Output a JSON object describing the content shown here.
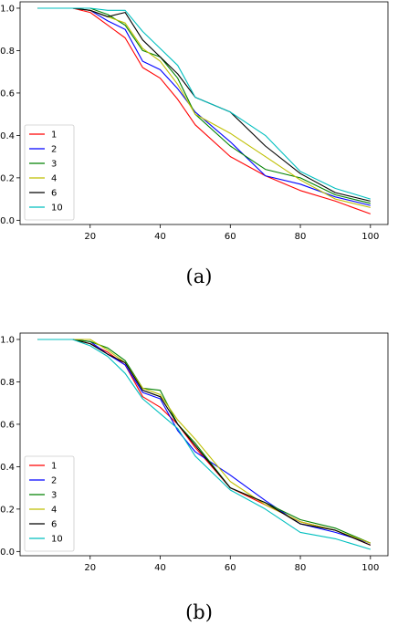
{
  "figure": {
    "captions": [
      "(a)",
      "(b)"
    ]
  },
  "chart_data": [
    {
      "type": "line",
      "x": [
        5,
        10,
        15,
        20,
        25,
        30,
        35,
        40,
        45,
        50,
        60,
        70,
        80,
        90,
        100
      ],
      "xticks": [
        20,
        40,
        60,
        80,
        100
      ],
      "yticks": [
        0.0,
        0.2,
        0.4,
        0.6,
        0.8,
        1.0
      ],
      "xlim": [
        0,
        105
      ],
      "ylim": [
        -0.02,
        1.03
      ],
      "grid": false,
      "legend_position": "lower-left",
      "series": [
        {
          "name": "1",
          "color": "#ff0000",
          "values": [
            1.0,
            1.0,
            1.0,
            0.98,
            0.92,
            0.86,
            0.72,
            0.67,
            0.57,
            0.45,
            0.3,
            0.21,
            0.14,
            0.09,
            0.03
          ]
        },
        {
          "name": "2",
          "color": "#0000ff",
          "values": [
            1.0,
            1.0,
            1.0,
            0.99,
            0.94,
            0.9,
            0.75,
            0.71,
            0.62,
            0.51,
            0.37,
            0.21,
            0.17,
            0.11,
            0.07
          ]
        },
        {
          "name": "3",
          "color": "#008000",
          "values": [
            1.0,
            1.0,
            1.0,
            1.0,
            0.97,
            0.92,
            0.8,
            0.77,
            0.67,
            0.5,
            0.35,
            0.24,
            0.2,
            0.12,
            0.08
          ]
        },
        {
          "name": "4",
          "color": "#bfbf00",
          "values": [
            1.0,
            1.0,
            1.0,
            0.99,
            0.96,
            0.93,
            0.81,
            0.75,
            0.64,
            0.5,
            0.41,
            0.3,
            0.19,
            0.1,
            0.06
          ]
        },
        {
          "name": "6",
          "color": "#000000",
          "values": [
            1.0,
            1.0,
            1.0,
            0.99,
            0.96,
            0.98,
            0.85,
            0.77,
            0.69,
            0.58,
            0.51,
            0.35,
            0.22,
            0.13,
            0.09
          ]
        },
        {
          "name": "10",
          "color": "#00bfbf",
          "values": [
            1.0,
            1.0,
            1.0,
            1.0,
            0.99,
            0.99,
            0.89,
            0.81,
            0.73,
            0.58,
            0.51,
            0.4,
            0.23,
            0.15,
            0.1
          ]
        }
      ]
    },
    {
      "type": "line",
      "x": [
        5,
        10,
        15,
        20,
        25,
        30,
        35,
        40,
        45,
        50,
        60,
        70,
        80,
        90,
        100
      ],
      "xticks": [
        20,
        40,
        60,
        80,
        100
      ],
      "yticks": [
        0.0,
        0.2,
        0.4,
        0.6,
        0.8,
        1.0
      ],
      "xlim": [
        0,
        105
      ],
      "ylim": [
        -0.02,
        1.03
      ],
      "grid": false,
      "legend_position": "lower-left",
      "series": [
        {
          "name": "1",
          "color": "#ff0000",
          "values": [
            1.0,
            1.0,
            1.0,
            0.98,
            0.94,
            0.88,
            0.73,
            0.68,
            0.6,
            0.49,
            0.3,
            0.22,
            0.14,
            0.1,
            0.03
          ]
        },
        {
          "name": "2",
          "color": "#0000ff",
          "values": [
            1.0,
            1.0,
            1.0,
            0.99,
            0.93,
            0.88,
            0.75,
            0.72,
            0.57,
            0.47,
            0.36,
            0.24,
            0.13,
            0.09,
            0.04
          ]
        },
        {
          "name": "3",
          "color": "#008000",
          "values": [
            1.0,
            1.0,
            1.0,
            0.99,
            0.96,
            0.9,
            0.77,
            0.76,
            0.6,
            0.51,
            0.3,
            0.23,
            0.15,
            0.11,
            0.04
          ]
        },
        {
          "name": "4",
          "color": "#bfbf00",
          "values": [
            1.0,
            1.0,
            1.0,
            1.0,
            0.95,
            0.89,
            0.77,
            0.74,
            0.62,
            0.53,
            0.33,
            0.22,
            0.14,
            0.1,
            0.04
          ]
        },
        {
          "name": "6",
          "color": "#000000",
          "values": [
            1.0,
            1.0,
            1.0,
            0.98,
            0.93,
            0.89,
            0.76,
            0.73,
            0.6,
            0.5,
            0.3,
            0.23,
            0.13,
            0.1,
            0.03
          ]
        },
        {
          "name": "10",
          "color": "#00bfbf",
          "values": [
            1.0,
            1.0,
            1.0,
            0.97,
            0.92,
            0.84,
            0.72,
            0.65,
            0.58,
            0.45,
            0.29,
            0.2,
            0.09,
            0.06,
            0.01
          ]
        }
      ]
    }
  ]
}
